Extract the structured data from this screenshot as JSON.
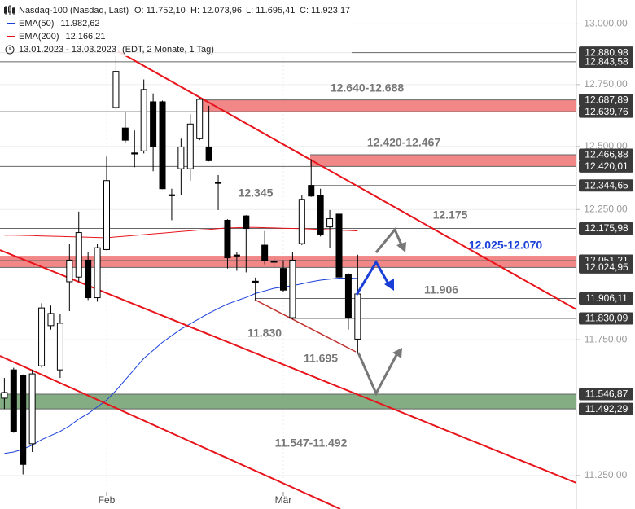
{
  "chart_data": {
    "type": "candlestick",
    "title": "Nasdaq-100 (Nasdaq, Last)",
    "quote": [
      "O: 11.752,10",
      "H: 12.073,96",
      "L: 11.695,41",
      "C: 11.923,17"
    ],
    "period": "13.01.2023 - 13.03.2023",
    "period_note": "(EDT, 2 Monate, 1 Tag)",
    "categories": [
      null,
      null,
      null,
      null,
      null,
      null,
      null,
      null,
      null,
      null,
      null,
      "Feb",
      null,
      null,
      null,
      null,
      null,
      null,
      null,
      null,
      null,
      null,
      null,
      null,
      null,
      null,
      null,
      null,
      null,
      null,
      "Mär",
      null,
      null,
      null,
      null,
      null,
      null,
      null,
      null
    ],
    "open": [
      11532,
      11637,
      11616,
      11365,
      11652,
      11803,
      11637,
      11970,
      11988,
      12053,
      11909,
      12094,
      12657,
      12574,
      12474,
      12482,
      12680,
      12680,
      12308,
      12411,
      12411,
      12531,
      12498,
      12357,
      12208,
      12073,
      12225,
      11972,
      12111,
      12049,
      12021,
      11833,
      12117,
      12345,
      12306,
      12182,
      12232,
      11997,
      11752.1
    ],
    "high": [
      11607,
      11645,
      11620,
      11637,
      11888,
      11879,
      11849,
      12117,
      12242,
      12085,
      12117,
      12459,
      12871,
      12640,
      12564,
      12771,
      12714,
      12685,
      12332,
      12531,
      12630,
      12697,
      12664,
      12386,
      12212,
      12084,
      12228,
      11986,
      12166,
      12069,
      12053,
      12085,
      12306,
      12449,
      12332,
      12248,
      12338,
      12003,
      12073.96
    ],
    "low": [
      11492,
      11405,
      11254,
      11335,
      11646,
      11788,
      11607,
      11858,
      11970,
      11900,
      11894,
      12091,
      12647,
      12515,
      12417,
      12472,
      12401,
      12330,
      12208,
      12306,
      12364,
      12525,
      12440,
      12248,
      12021,
      12012,
      12006,
      11900,
      12037,
      12021,
      11932,
      11827,
      12111,
      12300,
      12145,
      12101,
      11970,
      11788,
      11695.41
    ],
    "close": [
      11553,
      11410,
      11290,
      11622,
      11870,
      11849,
      11812,
      12053,
      12160,
      11909,
      12101,
      12364,
      12804,
      12525,
      12470,
      12730,
      12498,
      12332,
      12304,
      12498,
      12590,
      12690,
      12443,
      12353,
      12062,
      12069,
      12176,
      11968,
      12053,
      12045,
      11938,
      12053,
      12290,
      12303,
      12154,
      12214,
      11988,
      11833,
      11923.17
    ],
    "up_color": "#ffffff",
    "down_color": "#000000",
    "series": [
      {
        "name": "EMA(50)",
        "color": "#1a3fd8",
        "value_label": "11.982,62",
        "values": [
          11330,
          11335,
          11345,
          11360,
          11380,
          11395,
          11410,
          11430,
          11455,
          11475,
          11500,
          11525,
          11560,
          11600,
          11640,
          11680,
          11710,
          11740,
          11765,
          11790,
          11810,
          11830,
          11850,
          11868,
          11885,
          11898,
          11910,
          11925,
          11935,
          11945,
          11950,
          11955,
          11962,
          11970,
          11976,
          11980,
          11984,
          11984,
          11982.62
        ]
      },
      {
        "name": "EMA(200)",
        "color": "#e8141b",
        "value_label": "12.166,21",
        "values": [
          12150,
          12150,
          12149,
          12148,
          12147,
          12146,
          12145,
          12144,
          12143,
          12142,
          12141,
          12140,
          12143,
          12146,
          12149,
          12152,
          12155,
          12158,
          12161,
          12164,
          12167,
          12170,
          12172,
          12175,
          12178,
          12179,
          12180,
          12180,
          12179,
          12178,
          12177,
          12176,
          12175,
          12174,
          12172,
          12171,
          12169,
          12168,
          12166.21
        ]
      }
    ],
    "ylim": [
      11130,
      13100
    ],
    "log_scale": true,
    "grid": true,
    "yticks": [
      {
        "value": 13000,
        "label": "13.000,00"
      },
      {
        "value": 12750,
        "label": "12.750,00"
      },
      {
        "value": 12500,
        "label": "12.500,00"
      },
      {
        "value": 12250,
        "label": "12.250,00"
      },
      {
        "value": 11750,
        "label": "11.750,00"
      },
      {
        "value": 11250,
        "label": "11.250,00"
      }
    ],
    "levels": [
      {
        "value": 12880.98,
        "label": "12.880,98"
      },
      {
        "value": 12843.58,
        "label": "12.843,58"
      },
      {
        "value": 12687.89,
        "label": "12.687,89"
      },
      {
        "value": 12639.76,
        "label": "12.639,76"
      },
      {
        "value": 12466.88,
        "label": "12.466,88"
      },
      {
        "value": 12420.01,
        "label": "12.420,01"
      },
      {
        "value": 12344.65,
        "label": "12.344,65"
      },
      {
        "value": 12175.98,
        "label": "12.175,98"
      },
      {
        "value": 12051.21,
        "label": "12.051,21"
      },
      {
        "value": 12024.95,
        "label": "12.024,95"
      },
      {
        "value": 11906.11,
        "label": "11.906,11"
      },
      {
        "value": 11830.09,
        "label": "11.830,09"
      },
      {
        "value": 11546.87,
        "label": "11.546,87"
      },
      {
        "value": 11492.29,
        "label": "11.492,29"
      }
    ],
    "zones": [
      {
        "low": 12639.76,
        "high": 12687.89,
        "color": "#f07272",
        "label": "12.640-12.688",
        "label_color": "#777777"
      },
      {
        "low": 12420.01,
        "high": 12466.88,
        "color": "#f07272",
        "label": "12.420-12.467",
        "label_color": "#777777"
      },
      {
        "low": 12024.95,
        "high": 12070,
        "color": "#f07272",
        "label": "12.025-12.070",
        "label_color": "#1a3fd8"
      },
      {
        "low": 11492.29,
        "high": 11546.87,
        "color": "#6f9f6f",
        "label": "11.547-11.492",
        "label_color": "#777777"
      }
    ],
    "annotations": [
      "12.345",
      "12.175",
      "11.906",
      "11.830",
      "11.695"
    ]
  }
}
